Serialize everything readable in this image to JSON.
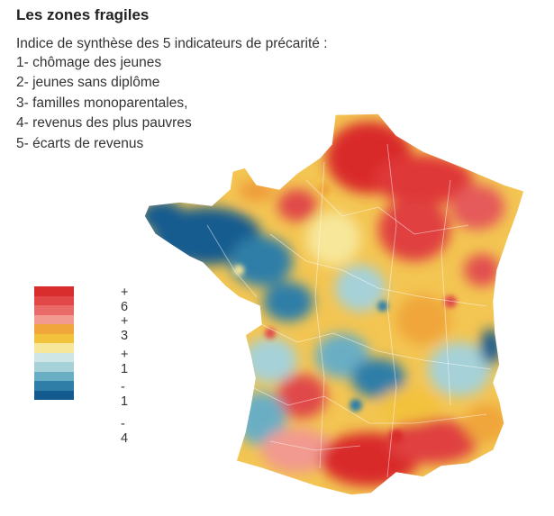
{
  "header": {
    "title": "Les zones fragiles",
    "subtitle": "Indice de synthèse des 5 indicateurs de précarité :"
  },
  "indicators": [
    "1- chômage des jeunes",
    "2- jeunes sans diplôme",
    "3- familles monoparentales,",
    "4- revenus des plus pauvres",
    "5- écarts de revenus"
  ],
  "legend": {
    "swatches": [
      "#d92c2c",
      "#e24848",
      "#ea6a6a",
      "#f29a8f",
      "#f0a63a",
      "#f3c23c",
      "#f7e79a",
      "#cfe6e6",
      "#a6d1d8",
      "#6aaec4",
      "#2f7ea8",
      "#135b8f"
    ],
    "labels": [
      "+ 6",
      "+ 3",
      "+ 1",
      "- 1",
      "- 4"
    ]
  }
}
